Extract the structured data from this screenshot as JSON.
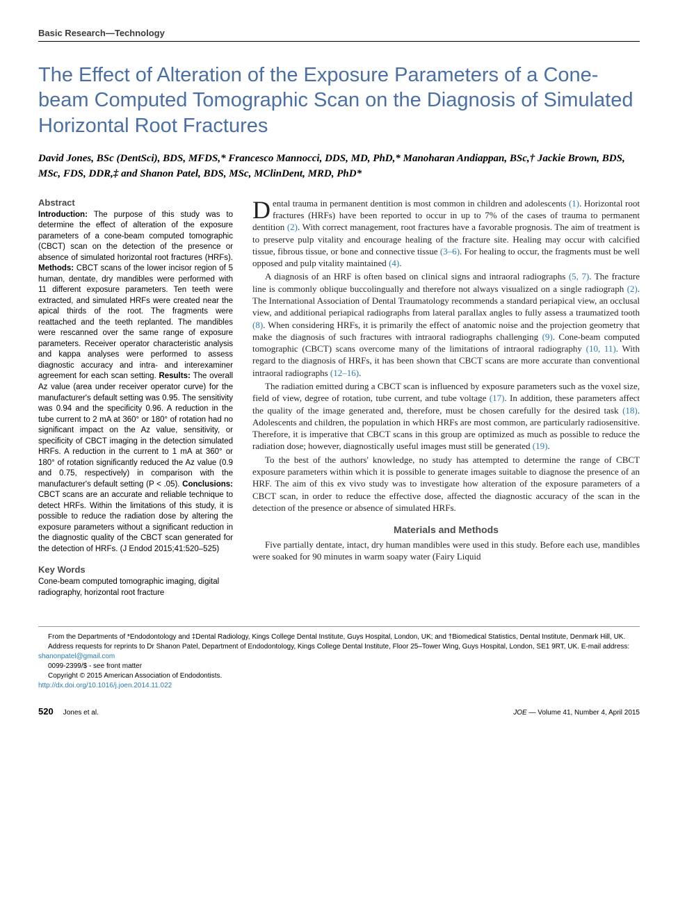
{
  "section_header": "Basic Research—Technology",
  "title": "The Effect of Alteration of the Exposure Parameters of a Cone-beam Computed Tomographic Scan on the Diagnosis of Simulated Horizontal Root Fractures",
  "authors": "David Jones, BSc (DentSci), BDS, MFDS,* Francesco Mannocci, DDS, MD, PhD,* Manoharan Andiappan, BSc,† Jackie Brown, BDS, MSc, FDS, DDR,‡ and Shanon Patel, BDS, MSc, MClinDent, MRD, PhD*",
  "abstract": {
    "heading": "Abstract",
    "intro_label": "Introduction: ",
    "intro": "The purpose of this study was to determine the effect of alteration of the exposure parameters of a cone-beam computed tomographic (CBCT) scan on the detection of the presence or absence of simulated horizontal root fractures (HRFs). ",
    "methods_label": "Methods: ",
    "methods": "CBCT scans of the lower incisor region of 5 human, dentate, dry mandibles were performed with 11 different exposure parameters. Ten teeth were extracted, and simulated HRFs were created near the apical thirds of the root. The fragments were reattached and the teeth replanted. The mandibles were rescanned over the same range of exposure parameters. Receiver operator characteristic analysis and kappa analyses were performed to assess diagnostic accuracy and intra- and interexaminer agreement for each scan setting. ",
    "results_label": "Results: ",
    "results": "The overall Az value (area under receiver operator curve) for the manufacturer's default setting was 0.95. The sensitivity was 0.94 and the specificity 0.96. A reduction in the tube current to 2 mA at 360° or 180° of rotation had no significant impact on the Az value, sensitivity, or specificity of CBCT imaging in the detection simulated HRFs. A reduction in the current to 1 mA at 360° or 180° of rotation significantly reduced the Az value (0.9 and 0.75, respectively) in comparison with the manufacturer's default setting (P < .05). ",
    "conclusions_label": "Conclusions: ",
    "conclusions": "CBCT scans are an accurate and reliable technique to detect HRFs. Within the limitations of this study, it is possible to reduce the radiation dose by altering the exposure parameters without a significant reduction in the diagnostic quality of the CBCT scan generated for the detection of HRFs. (J Endod 2015;41:520–525)"
  },
  "keywords": {
    "heading": "Key Words",
    "text": "Cone-beam computed tomographic imaging, digital radiography, horizontal root fracture"
  },
  "body": {
    "dropcap": "D",
    "p1_start": "ental trauma in permanent dentition is most common in children and adolescents ",
    "r1": "(1)",
    "p1_a": ". Horizontal root fractures (HRFs) have been reported to occur in up to 7% of the cases of trauma to permanent dentition ",
    "r2": "(2)",
    "p1_b": ". With correct management, root fractures have a favorable prognosis. The aim of treatment is to preserve pulp vitality and encourage healing of the fracture site. Healing may occur with calcified tissue, fibrous tissue, or bone and connective tissue ",
    "r3": "(3–6)",
    "p1_c": ". For healing to occur, the fragments must be well opposed and pulp vitality maintained ",
    "r4": "(4)",
    "p1_d": ".",
    "p2_a": "A diagnosis of an HRF is often based on clinical signs and intraoral radiographs ",
    "r5": "(5, 7)",
    "p2_b": ". The fracture line is commonly oblique buccolingually and therefore not always visualized on a single radiograph ",
    "r6": "(2)",
    "p2_c": ". The International Association of Dental Traumatology recommends a standard periapical view, an occlusal view, and additional periapical radiographs from lateral parallax angles to fully assess a traumatized tooth ",
    "r7": "(8)",
    "p2_d": ". When considering HRFs, it is primarily the effect of anatomic noise and the projection geometry that make the diagnosis of such fractures with intraoral radiographs challenging ",
    "r8": "(9)",
    "p2_e": ". Cone-beam computed tomographic (CBCT) scans overcome many of the limitations of intraoral radiography ",
    "r9": "(10, 11)",
    "p2_f": ". With regard to the diagnosis of HRFs, it has been shown that CBCT scans are more accurate than conventional intraoral radiographs ",
    "r10": "(12–16)",
    "p2_g": ".",
    "p3_a": "The radiation emitted during a CBCT scan is influenced by exposure parameters such as the voxel size, field of view, degree of rotation, tube current, and tube voltage ",
    "r11": "(17)",
    "p3_b": ". In addition, these parameters affect the quality of the image generated and, therefore, must be chosen carefully for the desired task ",
    "r12": "(18)",
    "p3_c": ". Adolescents and children, the population in which HRFs are most common, are particularly radiosensitive. Therefore, it is imperative that CBCT scans in this group are optimized as much as possible to reduce the radiation dose; however, diagnostically useful images must still be generated ",
    "r13": "(19)",
    "p3_d": ".",
    "p4": "To the best of the authors' knowledge, no study has attempted to determine the range of CBCT exposure parameters within which it is possible to generate images suitable to diagnose the presence of an HRF. The aim of this ex vivo study was to investigate how alteration of the exposure parameters of a CBCT scan, in order to reduce the effective dose, affected the diagnostic accuracy of the scan in the detection of the presence or absence of simulated HRFs.",
    "methods_heading": "Materials and Methods",
    "p5": "Five partially dentate, intact, dry human mandibles were used in this study. Before each use, mandibles were soaked for 90 minutes in warm soapy water (Fairy Liquid"
  },
  "footnotes": {
    "affil": "From the Departments of *Endodontology and ‡Dental Radiology, Kings College Dental Institute, Guys Hospital, London, UK; and †Biomedical Statistics, Dental Institute, Denmark Hill, UK.",
    "corr_a": "Address requests for reprints to Dr Shanon Patel, Department of Endodontology, Kings College Dental Institute, Floor 25–Tower Wing, Guys Hospital, London, SE1 9RT, UK. E-mail address: ",
    "email": "shanonpatel@gmail.com",
    "issn": "0099-2399/$ - see front matter",
    "copyright": "Copyright © 2015 American Association of Endodontists.",
    "doi": "http://dx.doi.org/10.1016/j.joen.2014.11.022"
  },
  "footer": {
    "pagenum": "520",
    "authors_short": "Jones et al.",
    "journal": "JOE",
    "issue": " — Volume 41, Number 4, April 2015"
  }
}
